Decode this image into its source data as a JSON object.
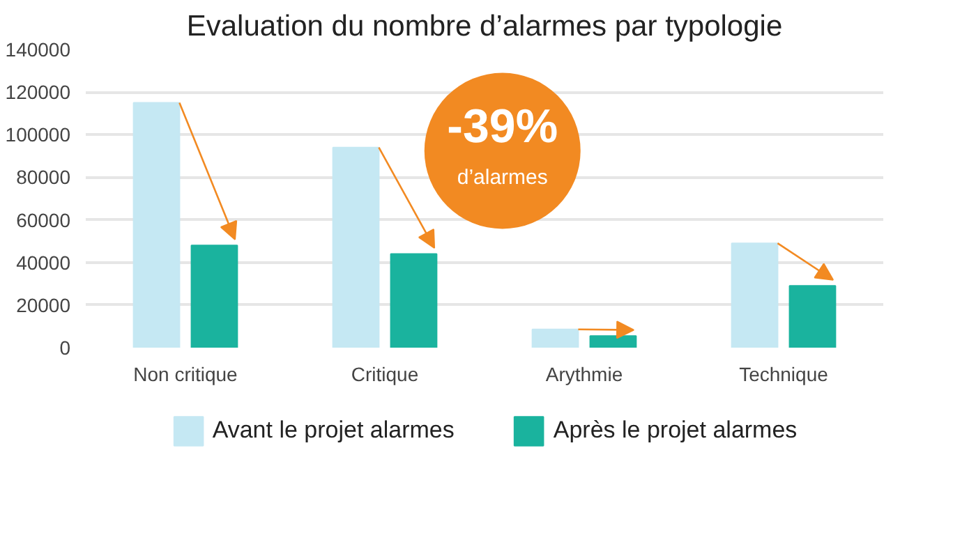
{
  "chart_data": {
    "type": "bar",
    "title": "Evaluation du nombre d’alarmes par typologie",
    "categories": [
      "Non critique",
      "Critique",
      "Arythmie",
      "Technique"
    ],
    "series": [
      {
        "name": "Avant le projet alarmes",
        "color": "#c5e8f3",
        "values": [
          115000,
          94000,
          8600,
          49000
        ]
      },
      {
        "name": "Après le projet alarmes",
        "color": "#1ab39e",
        "values": [
          48000,
          44000,
          5500,
          29000
        ]
      }
    ],
    "ylim": [
      0,
      140000
    ],
    "yticks": [
      0,
      20000,
      40000,
      60000,
      80000,
      100000,
      120000,
      140000
    ],
    "grid": "y",
    "legend": "bottom",
    "annotations": [
      "-39%",
      "d’alarmes"
    ]
  }
}
